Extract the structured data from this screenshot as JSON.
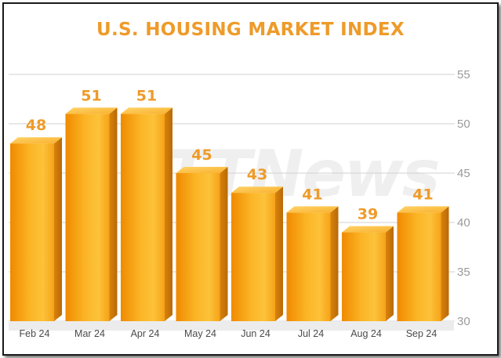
{
  "watermark": "FTTNews",
  "chart_data": {
    "type": "bar",
    "title": "U.S. HOUSING MARKET INDEX",
    "xlabel": "",
    "ylabel": "",
    "categories": [
      "Feb 24",
      "Mar 24",
      "Apr 24",
      "May 24",
      "Jun 24",
      "Jul 24",
      "Aug 24",
      "Sep 24"
    ],
    "values": [
      48,
      51,
      51,
      45,
      43,
      41,
      39,
      41
    ],
    "ylim": [
      30,
      55
    ],
    "yticks": [
      30,
      35,
      40,
      45,
      50,
      55
    ],
    "grid": true,
    "data_labels": true,
    "y_axis_position": "right",
    "colors": {
      "bar": "#f7a81b",
      "title": "#ee9b2a",
      "label": "#ee9b2a",
      "axis": "#9a9a9a"
    }
  }
}
